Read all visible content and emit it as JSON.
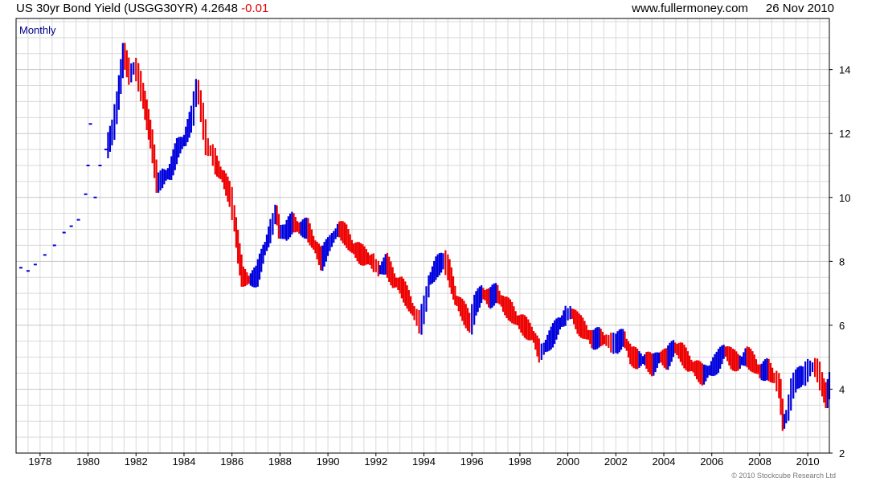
{
  "header": {
    "title": "US 30yr Bond Yield (USGG30YR)",
    "last_value": "4.2648",
    "change": "-0.01",
    "website": "www.fullermoney.com",
    "date": "26 Nov 2010"
  },
  "copyright": "© 2010 Stockcube Research Ltd",
  "colors": {
    "up": "#0000dd",
    "down": "#ee0000",
    "grid": "#d9d9d9",
    "frame": "#000000",
    "period_label": "#00008b"
  },
  "chart_data": {
    "type": "line",
    "period_label": "Monthly",
    "yaxis_side": "right",
    "ylim": [
      2,
      15.6
    ],
    "xlim": [
      1977.0,
      2010.9
    ],
    "yticks": [
      2,
      4,
      6,
      8,
      10,
      12,
      14
    ],
    "xticks": [
      1978,
      1980,
      1982,
      1984,
      1986,
      1988,
      1990,
      1992,
      1994,
      1996,
      1998,
      2000,
      2002,
      2004,
      2006,
      2008,
      2010
    ],
    "grid": true,
    "series": [
      {
        "x": [
          1977.2,
          1977.5,
          1977.8,
          1978.2,
          1978.6,
          1979.0,
          1979.3,
          1979.6,
          1979.9,
          1980.0,
          1980.1,
          1980.3,
          1980.5,
          1980.75,
          1981.0,
          1981.2,
          1981.45,
          1981.7,
          1981.9,
          1982.1,
          1982.3,
          1982.6,
          1982.85,
          1983.1,
          1983.4,
          1983.7,
          1984.0,
          1984.3,
          1984.5,
          1984.7,
          1984.9,
          1985.1,
          1985.3,
          1985.6,
          1985.9,
          1986.1,
          1986.25,
          1986.4,
          1986.7,
          1987.0,
          1987.3,
          1987.6,
          1987.8,
          1987.95,
          1988.2,
          1988.5,
          1988.8,
          1989.1,
          1989.4,
          1989.7,
          1990.0,
          1990.4,
          1990.7,
          1991.0,
          1991.3,
          1991.6,
          1991.9,
          1992.1,
          1992.4,
          1992.7,
          1993.0,
          1993.3,
          1993.6,
          1993.8,
          1994.0,
          1994.2,
          1994.5,
          1994.8,
          1995.0,
          1995.3,
          1995.6,
          1995.9,
          1996.1,
          1996.4,
          1996.7,
          1997.0,
          1997.3,
          1997.6,
          1997.9,
          1998.2,
          1998.5,
          1998.8,
          1999.0,
          1999.3,
          1999.6,
          1999.9,
          2000.1,
          2000.4,
          2000.7,
          2001.0,
          2001.3,
          2001.6,
          2001.8,
          2002.0,
          2002.3,
          2002.6,
          2002.9,
          2003.2,
          2003.5,
          2003.8,
          2004.1,
          2004.4,
          2004.7,
          2005.0,
          2005.3,
          2005.6,
          2005.9,
          2006.2,
          2006.5,
          2006.8,
          2007.1,
          2007.4,
          2007.7,
          2008.0,
          2008.3,
          2008.6,
          2008.8,
          2008.95,
          2009.1,
          2009.3,
          2009.5,
          2009.8,
          2010.0,
          2010.2,
          2010.4,
          2010.6,
          2010.75,
          2010.9
        ],
        "y": [
          7.8,
          7.7,
          7.9,
          8.2,
          8.5,
          8.9,
          9.1,
          9.3,
          10.1,
          11.0,
          12.3,
          10.0,
          11.0,
          11.5,
          12.1,
          13.0,
          14.5,
          13.8,
          14.1,
          13.6,
          13.0,
          11.8,
          10.4,
          10.6,
          10.8,
          11.5,
          11.8,
          12.5,
          13.5,
          12.6,
          11.6,
          11.4,
          11.0,
          10.6,
          10.0,
          9.1,
          8.2,
          7.5,
          7.4,
          7.5,
          8.3,
          9.0,
          9.6,
          8.9,
          8.9,
          9.2,
          9.0,
          9.0,
          8.5,
          8.0,
          8.5,
          9.0,
          8.8,
          8.4,
          8.2,
          8.1,
          7.9,
          7.7,
          7.9,
          7.4,
          7.2,
          6.8,
          6.3,
          6.0,
          6.6,
          7.4,
          7.8,
          8.0,
          7.7,
          6.8,
          6.4,
          6.0,
          6.6,
          7.0,
          6.8,
          7.0,
          6.6,
          6.4,
          6.1,
          5.9,
          5.7,
          5.1,
          5.3,
          5.6,
          6.0,
          6.3,
          6.4,
          6.0,
          5.8,
          5.5,
          5.6,
          5.5,
          5.4,
          5.4,
          5.6,
          5.0,
          4.9,
          4.9,
          4.7,
          5.0,
          4.9,
          5.3,
          5.1,
          4.8,
          4.6,
          4.4,
          4.6,
          4.8,
          5.2,
          4.9,
          4.8,
          5.0,
          4.8,
          4.5,
          4.6,
          4.3,
          4.0,
          2.9,
          3.2,
          4.0,
          4.3,
          4.4,
          4.6,
          4.7,
          4.5,
          4.0,
          3.7,
          4.2
        ]
      }
    ]
  }
}
